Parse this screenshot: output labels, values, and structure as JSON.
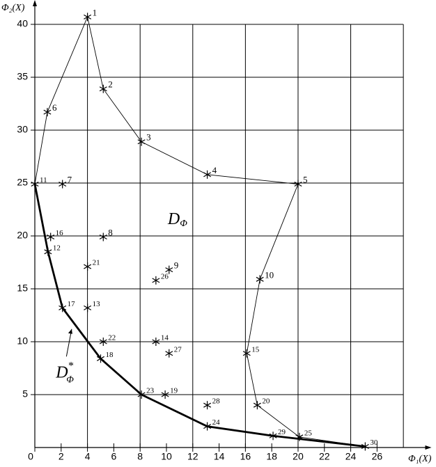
{
  "chart_data": {
    "type": "scatter",
    "x_label": "Φ₁(X)",
    "y_label": "Φ₂(X)",
    "xlim": [
      0,
      29.5
    ],
    "ylim": [
      0,
      42
    ],
    "xticks": [
      0,
      2,
      4,
      6,
      8,
      10,
      12,
      14,
      16,
      18,
      20,
      22,
      24,
      26
    ],
    "yticks": [
      5,
      10,
      15,
      20,
      25,
      30,
      35,
      40
    ],
    "x_grid": [
      4,
      8,
      12,
      16,
      20,
      24,
      28
    ],
    "grid": true,
    "names": [
      "1",
      "2",
      "3",
      "4",
      "5",
      "6",
      "7",
      "8",
      "9",
      "10",
      "11",
      "12",
      "13",
      "14",
      "15",
      "16",
      "17",
      "18",
      "19",
      "20",
      "21",
      "22",
      "23",
      "24",
      "25",
      "26",
      "27",
      "28",
      "29",
      "30"
    ],
    "x": [
      4.0,
      5.2,
      8.1,
      13.1,
      20.0,
      0.95,
      2.1,
      5.2,
      10.2,
      17.1,
      0,
      1.0,
      4.0,
      9.2,
      16.1,
      1.2,
      2.1,
      5.0,
      9.9,
      16.9,
      4.0,
      5.2,
      8.1,
      13.1,
      20.1,
      9.2,
      10.2,
      13.1,
      18.1,
      25.1
    ],
    "y": [
      40.7,
      33.9,
      28.9,
      25.8,
      24.9,
      31.7,
      24.9,
      19.9,
      16.8,
      15.9,
      24.9,
      18.5,
      13.2,
      10.0,
      8.9,
      19.9,
      13.2,
      8.4,
      5.0,
      4.0,
      17.1,
      10.0,
      5.0,
      2.0,
      1.0,
      15.8,
      8.9,
      4.0,
      1.1,
      0.1
    ],
    "boundary": [
      "11",
      "6",
      "1",
      "2",
      "3",
      "4",
      "5",
      "10",
      "15",
      "20",
      "25",
      "30"
    ],
    "front": [
      "11",
      "12",
      "17",
      "18",
      "23",
      "24",
      "29",
      "30"
    ],
    "annotations": [
      {
        "text": "D",
        "sub": "Φ",
        "x": 10.1,
        "y": 21.5
      },
      {
        "text": "D",
        "sub": "Φ",
        "sup": "*",
        "x": 1.6,
        "y": 7
      }
    ]
  }
}
